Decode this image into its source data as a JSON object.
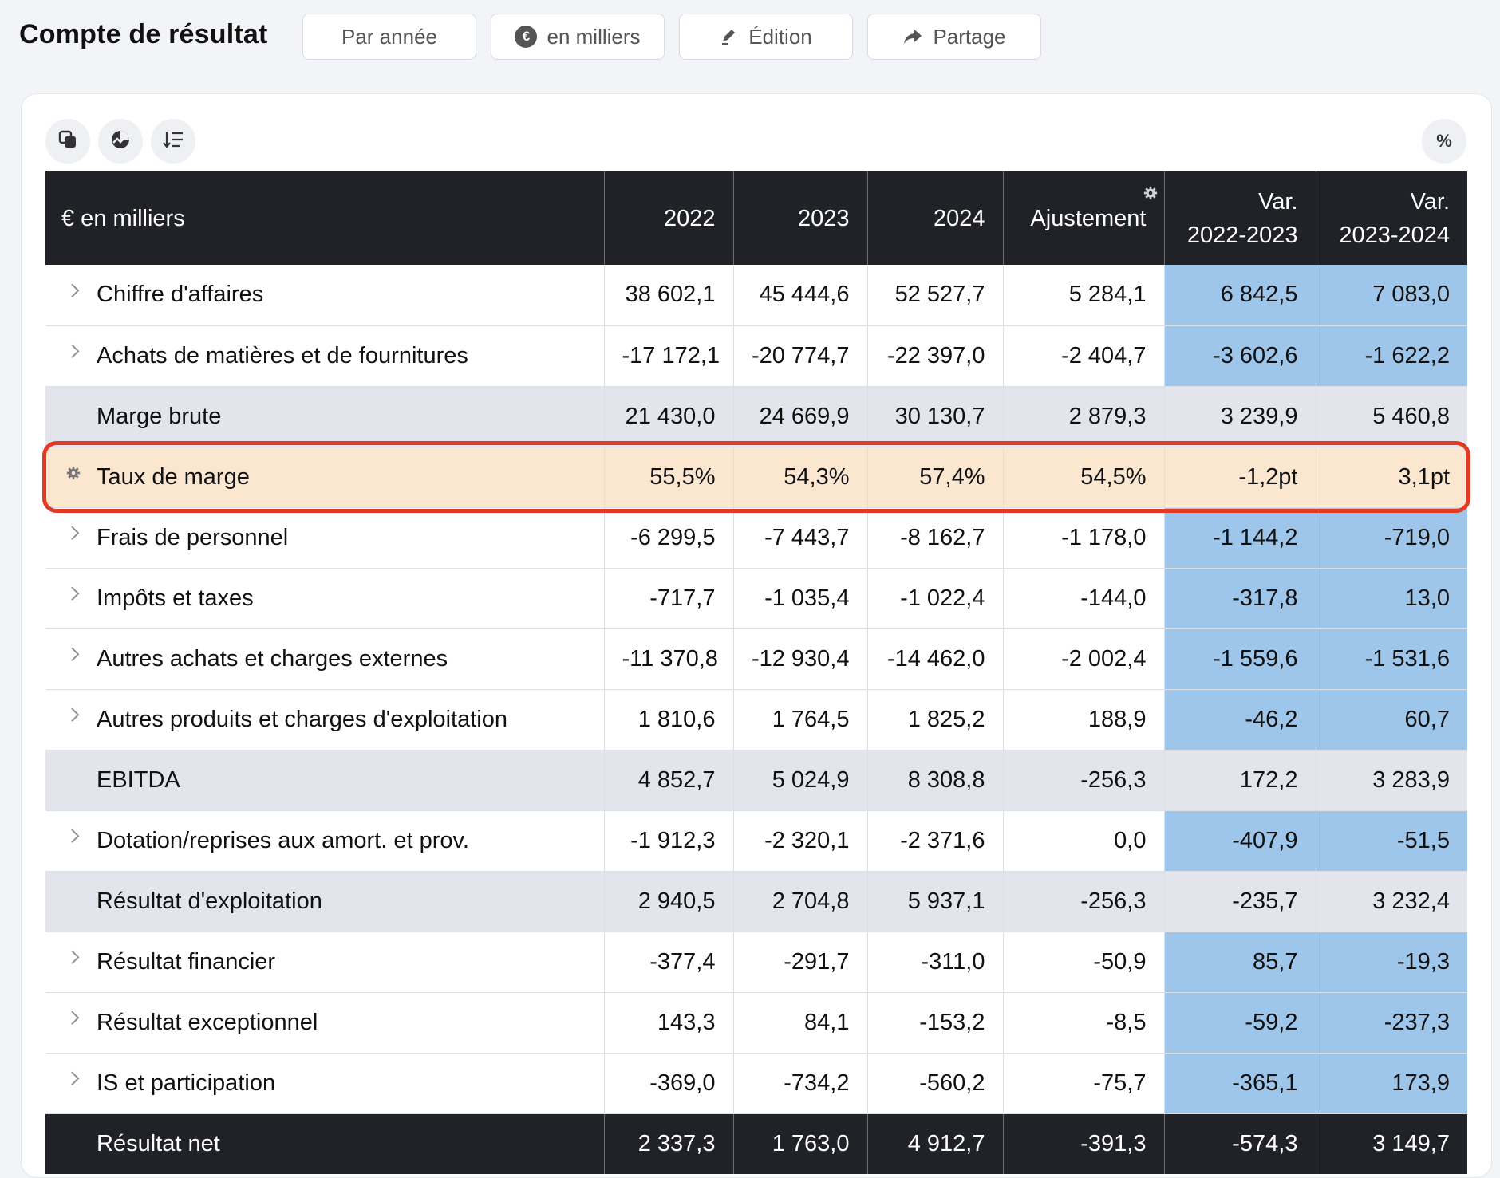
{
  "page_title": "Compte de résultat",
  "toolbar": {
    "period_label": "Par année",
    "unit_label": "en milliers",
    "unit_icon": "euro-icon",
    "edit_label": "Édition",
    "share_label": "Partage",
    "percent_label": "%"
  },
  "table": {
    "header": {
      "label": "€ en milliers",
      "c2022": "2022",
      "c2023": "2023",
      "c2024": "2024",
      "adjust": "Ajustement",
      "var1_line1": "Var.",
      "var1_line2": "2022-2023",
      "var2_line1": "Var.",
      "var2_line2": "2023-2024"
    },
    "rows": [
      {
        "label": "Chiffre d'affaires",
        "v2022": "38 602,1",
        "v2023": "45 444,6",
        "v2024": "52 527,7",
        "adj": "5 284,1",
        "var1": "6 842,5",
        "var2": "7 083,0"
      },
      {
        "label": "Achats de matières et de fournitures",
        "v2022": "-17 172,1",
        "v2023": "-20 774,7",
        "v2024": "-22 397,0",
        "adj": "-2 404,7",
        "var1": "-3 602,6",
        "var2": "-1 622,2"
      },
      {
        "label": "Marge brute",
        "v2022": "21 430,0",
        "v2023": "24 669,9",
        "v2024": "30 130,7",
        "adj": "2 879,3",
        "var1": "3 239,9",
        "var2": "5 460,8"
      },
      {
        "label": "Taux de marge",
        "v2022": "55,5%",
        "v2023": "54,3%",
        "v2024": "57,4%",
        "adj": "54,5%",
        "var1": "-1,2pt",
        "var2": "3,1pt"
      },
      {
        "label": "Frais de personnel",
        "v2022": "-6 299,5",
        "v2023": "-7 443,7",
        "v2024": "-8 162,7",
        "adj": "-1 178,0",
        "var1": "-1 144,2",
        "var2": "-719,0"
      },
      {
        "label": "Impôts et taxes",
        "v2022": "-717,7",
        "v2023": "-1 035,4",
        "v2024": "-1 022,4",
        "adj": "-144,0",
        "var1": "-317,8",
        "var2": "13,0"
      },
      {
        "label": "Autres achats et charges externes",
        "v2022": "-11 370,8",
        "v2023": "-12 930,4",
        "v2024": "-14 462,0",
        "adj": "-2 002,4",
        "var1": "-1 559,6",
        "var2": "-1 531,6"
      },
      {
        "label": "Autres produits et charges d'exploitation",
        "v2022": "1 810,6",
        "v2023": "1 764,5",
        "v2024": "1 825,2",
        "adj": "188,9",
        "var1": "-46,2",
        "var2": "60,7"
      },
      {
        "label": "EBITDA",
        "v2022": "4 852,7",
        "v2023": "5 024,9",
        "v2024": "8 308,8",
        "adj": "-256,3",
        "var1": "172,2",
        "var2": "3 283,9"
      },
      {
        "label": "Dotation/reprises aux amort. et prov.",
        "v2022": "-1 912,3",
        "v2023": "-2 320,1",
        "v2024": "-2 371,6",
        "adj": "0,0",
        "var1": "-407,9",
        "var2": "-51,5"
      },
      {
        "label": "Résultat d'exploitation",
        "v2022": "2 940,5",
        "v2023": "2 704,8",
        "v2024": "5 937,1",
        "adj": "-256,3",
        "var1": "-235,7",
        "var2": "3 232,4"
      },
      {
        "label": "Résultat financier",
        "v2022": "-377,4",
        "v2023": "-291,7",
        "v2024": "-311,0",
        "adj": "-50,9",
        "var1": "85,7",
        "var2": "-19,3"
      },
      {
        "label": "Résultat exceptionnel",
        "v2022": "143,3",
        "v2023": "84,1",
        "v2024": "-153,2",
        "adj": "-8,5",
        "var1": "-59,2",
        "var2": "-237,3"
      },
      {
        "label": "IS et participation",
        "v2022": "-369,0",
        "v2023": "-734,2",
        "v2024": "-560,2",
        "adj": "-75,7",
        "var1": "-365,1",
        "var2": "173,9"
      },
      {
        "label": "Résultat net",
        "v2022": "2 337,3",
        "v2023": "1 763,0",
        "v2024": "4 912,7",
        "adj": "-391,3",
        "var1": "-574,3",
        "var2": "3 149,7"
      }
    ]
  },
  "colors": {
    "header_bg": "#202227",
    "variation_bg": "#9dc6ea",
    "subtotal_bg": "#e3e5ec",
    "highlight_bg": "#fbe6d0",
    "highlight_border": "#e23a24"
  }
}
